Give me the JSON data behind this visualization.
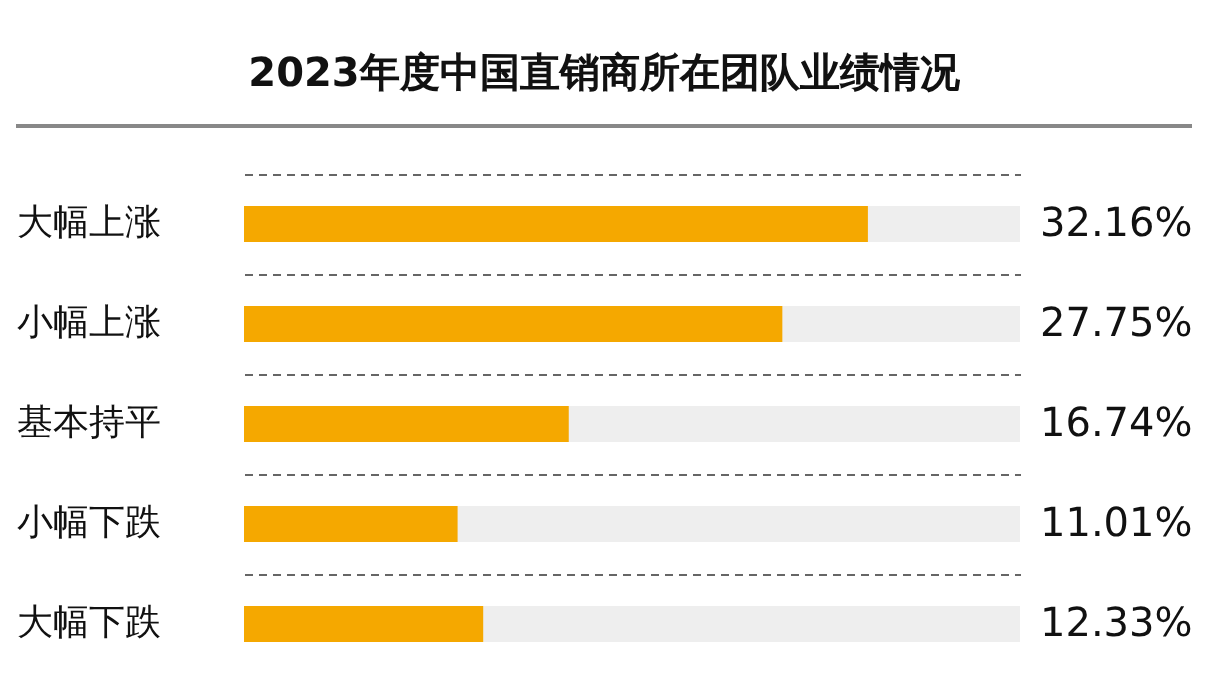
{
  "chart_data": {
    "type": "bar",
    "orientation": "horizontal",
    "title": "2023年度中国直销商所在团队业绩情况",
    "categories": [
      "大幅上涨",
      "小幅上涨",
      "基本持平",
      "小幅下跌",
      "大幅下跌"
    ],
    "values": [
      32.16,
      27.75,
      16.74,
      11.01,
      12.33
    ],
    "value_labels": [
      "32.16%",
      "27.75%",
      "16.74%",
      "11.01%",
      "12.33%"
    ],
    "color": "#f5a800",
    "xlim": [
      0,
      40
    ],
    "grid": "y",
    "tick_labels": "y"
  }
}
